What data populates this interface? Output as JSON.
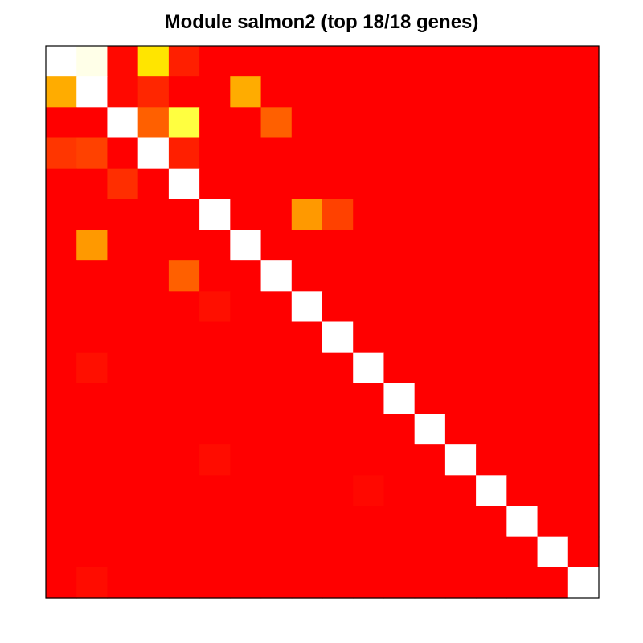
{
  "chart_data": {
    "type": "heatmap",
    "title": "Module salmon2 (top 18/18 genes)",
    "xlabel": "",
    "ylabel": "",
    "n_rows": 18,
    "n_cols": 18,
    "value_range": [
      0,
      1
    ],
    "color_scale": [
      "#ff0000",
      "#ff4000",
      "#ff8000",
      "#ffbf00",
      "#ffff00",
      "#ffff80",
      "#ffffff"
    ],
    "diagonal": "white",
    "values": [
      [
        1.0,
        0.97,
        0.02,
        0.6,
        0.08,
        0.0,
        0.0,
        0.0,
        0.0,
        0.0,
        0.0,
        0.0,
        0.0,
        0.0,
        0.0,
        0.0,
        0.0,
        0.0
      ],
      [
        0.45,
        1.0,
        0.02,
        0.1,
        0.0,
        0.0,
        0.45,
        0.0,
        0.0,
        0.0,
        0.0,
        0.0,
        0.0,
        0.0,
        0.0,
        0.0,
        0.0,
        0.0
      ],
      [
        0.0,
        0.0,
        1.0,
        0.25,
        0.75,
        0.0,
        0.0,
        0.25,
        0.0,
        0.0,
        0.0,
        0.0,
        0.0,
        0.0,
        0.0,
        0.0,
        0.0,
        0.0
      ],
      [
        0.14,
        0.17,
        0.0,
        1.0,
        0.08,
        0.0,
        0.0,
        0.0,
        0.0,
        0.0,
        0.0,
        0.0,
        0.0,
        0.0,
        0.0,
        0.0,
        0.0,
        0.0
      ],
      [
        0.0,
        0.0,
        0.12,
        0.0,
        1.0,
        0.0,
        0.0,
        0.0,
        0.0,
        0.0,
        0.0,
        0.0,
        0.0,
        0.0,
        0.0,
        0.0,
        0.0,
        0.0
      ],
      [
        0.0,
        0.0,
        0.0,
        0.0,
        0.0,
        1.0,
        0.0,
        0.0,
        0.4,
        0.17,
        0.0,
        0.0,
        0.0,
        0.0,
        0.0,
        0.0,
        0.0,
        0.0
      ],
      [
        0.0,
        0.4,
        0.0,
        0.0,
        0.0,
        0.0,
        1.0,
        0.0,
        0.0,
        0.0,
        0.0,
        0.0,
        0.0,
        0.0,
        0.0,
        0.0,
        0.0,
        0.0
      ],
      [
        0.0,
        0.0,
        0.0,
        0.0,
        0.25,
        0.0,
        0.0,
        1.0,
        0.0,
        0.0,
        0.0,
        0.0,
        0.0,
        0.0,
        0.0,
        0.0,
        0.0,
        0.0
      ],
      [
        0.0,
        0.0,
        0.0,
        0.0,
        0.0,
        0.04,
        0.0,
        0.0,
        1.0,
        0.0,
        0.0,
        0.0,
        0.0,
        0.0,
        0.0,
        0.0,
        0.0,
        0.0
      ],
      [
        0.0,
        0.0,
        0.0,
        0.0,
        0.0,
        0.0,
        0.0,
        0.0,
        0.0,
        1.0,
        0.0,
        0.0,
        0.0,
        0.0,
        0.0,
        0.0,
        0.0,
        0.0
      ],
      [
        0.0,
        0.04,
        0.0,
        0.0,
        0.0,
        0.0,
        0.0,
        0.0,
        0.0,
        0.0,
        1.0,
        0.0,
        0.0,
        0.0,
        0.0,
        0.0,
        0.0,
        0.0
      ],
      [
        0.0,
        0.0,
        0.0,
        0.0,
        0.0,
        0.0,
        0.0,
        0.0,
        0.0,
        0.0,
        0.0,
        1.0,
        0.0,
        0.0,
        0.0,
        0.0,
        0.0,
        0.0
      ],
      [
        0.0,
        0.0,
        0.0,
        0.0,
        0.0,
        0.0,
        0.0,
        0.0,
        0.0,
        0.0,
        0.0,
        0.0,
        1.0,
        0.0,
        0.0,
        0.0,
        0.0,
        0.0
      ],
      [
        0.0,
        0.0,
        0.0,
        0.0,
        0.0,
        0.03,
        0.0,
        0.0,
        0.0,
        0.0,
        0.0,
        0.0,
        0.0,
        1.0,
        0.0,
        0.0,
        0.0,
        0.0
      ],
      [
        0.0,
        0.0,
        0.0,
        0.0,
        0.0,
        0.0,
        0.0,
        0.0,
        0.0,
        0.0,
        0.02,
        0.0,
        0.0,
        0.0,
        1.0,
        0.0,
        0.0,
        0.0
      ],
      [
        0.0,
        0.0,
        0.0,
        0.0,
        0.0,
        0.0,
        0.0,
        0.0,
        0.0,
        0.0,
        0.0,
        0.0,
        0.0,
        0.0,
        0.0,
        1.0,
        0.0,
        0.0
      ],
      [
        0.0,
        0.0,
        0.0,
        0.0,
        0.0,
        0.0,
        0.0,
        0.0,
        0.0,
        0.0,
        0.0,
        0.0,
        0.0,
        0.0,
        0.0,
        0.0,
        1.0,
        0.0
      ],
      [
        0.0,
        0.03,
        0.0,
        0.0,
        0.0,
        0.0,
        0.0,
        0.0,
        0.0,
        0.0,
        0.0,
        0.0,
        0.0,
        0.0,
        0.0,
        0.0,
        0.0,
        1.0
      ]
    ]
  }
}
